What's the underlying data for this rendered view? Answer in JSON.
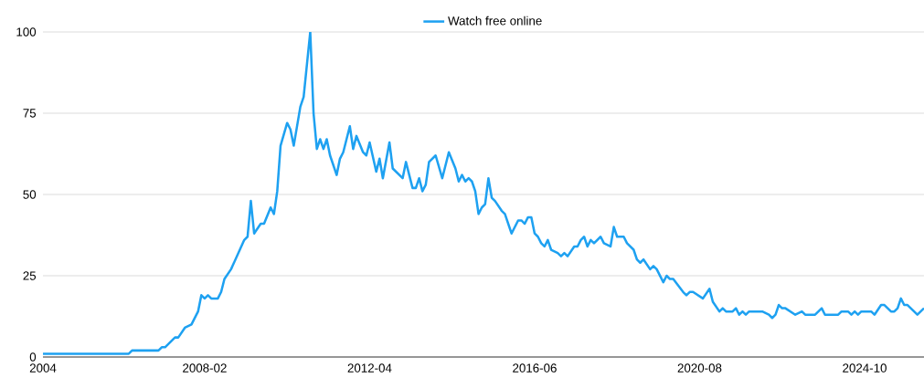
{
  "chart_data": {
    "type": "line",
    "x": [
      "2004-01",
      "2006-03",
      "2006-04",
      "2006-12",
      "2007-01",
      "2007-02",
      "2007-05",
      "2007-06",
      "2007-08",
      "2007-10",
      "2007-12",
      "2008-01",
      "2008-02",
      "2008-03",
      "2008-04",
      "2008-06",
      "2008-07",
      "2008-08",
      "2008-10",
      "2009-02",
      "2009-03",
      "2009-04",
      "2009-05",
      "2009-07",
      "2009-08",
      "2009-10",
      "2009-11",
      "2009-12",
      "2010-01",
      "2010-03",
      "2010-04",
      "2010-05",
      "2010-07",
      "2010-08",
      "2010-10",
      "2010-11",
      "2010-12",
      "2011-01",
      "2011-02",
      "2011-03",
      "2011-04",
      "2011-06",
      "2011-07",
      "2011-08",
      "2011-10",
      "2011-11",
      "2011-12",
      "2012-02",
      "2012-03",
      "2012-04",
      "2012-06",
      "2012-07",
      "2012-08",
      "2012-10",
      "2012-11",
      "2013-02",
      "2013-03",
      "2013-05",
      "2013-06",
      "2013-07",
      "2013-08",
      "2013-09",
      "2013-10",
      "2013-12",
      "2014-02",
      "2014-04",
      "2014-06",
      "2014-07",
      "2014-08",
      "2014-09",
      "2014-10",
      "2014-11",
      "2014-12",
      "2015-01",
      "2015-02",
      "2015-03",
      "2015-04",
      "2015-05",
      "2015-06",
      "2015-08",
      "2015-09",
      "2015-11",
      "2016-01",
      "2016-02",
      "2016-03",
      "2016-04",
      "2016-05",
      "2016-06",
      "2016-07",
      "2016-08",
      "2016-09",
      "2016-10",
      "2016-11",
      "2017-01",
      "2017-02",
      "2017-03",
      "2017-04",
      "2017-06",
      "2017-07",
      "2017-08",
      "2017-09",
      "2017-10",
      "2017-11",
      "2017-12",
      "2018-02",
      "2018-03",
      "2018-05",
      "2018-06",
      "2018-07",
      "2018-09",
      "2018-10",
      "2018-12",
      "2019-01",
      "2019-02",
      "2019-03",
      "2019-05",
      "2019-06",
      "2019-07",
      "2019-09",
      "2019-10",
      "2019-11",
      "2019-12",
      "2020-03",
      "2020-04",
      "2020-05",
      "2020-06",
      "2020-09",
      "2020-11",
      "2020-12",
      "2021-02",
      "2021-03",
      "2021-04",
      "2021-06",
      "2021-07",
      "2021-08",
      "2021-09",
      "2021-10",
      "2021-11",
      "2022-03",
      "2022-05",
      "2022-06",
      "2022-07",
      "2022-08",
      "2022-09",
      "2022-10",
      "2023-01",
      "2023-03",
      "2023-04",
      "2023-07",
      "2023-09",
      "2023-10",
      "2024-02",
      "2024-03",
      "2024-05",
      "2024-06",
      "2024-07",
      "2024-08",
      "2024-09",
      "2024-12",
      "2025-01",
      "2025-03",
      "2025-04",
      "2025-06",
      "2025-07",
      "2025-08",
      "2025-09",
      "2025-10",
      "2025-11",
      "2026-02",
      "2026-04"
    ],
    "series": [
      {
        "name": "Watch free online",
        "color": "#1ea1f1",
        "values": [
          1,
          1,
          2,
          2,
          3,
          3,
          6,
          6,
          9,
          10,
          14,
          19,
          18,
          19,
          18,
          18,
          20,
          24,
          27,
          36,
          37,
          48,
          38,
          41,
          41,
          46,
          44,
          51,
          65,
          72,
          70,
          65,
          77,
          80,
          100,
          75,
          64,
          67,
          64,
          67,
          62,
          56,
          61,
          63,
          71,
          64,
          68,
          63,
          62,
          66,
          57,
          61,
          55,
          66,
          58,
          55,
          60,
          52,
          52,
          55,
          51,
          53,
          60,
          62,
          55,
          63,
          58,
          54,
          56,
          54,
          55,
          54,
          51,
          44,
          46,
          47,
          55,
          49,
          48,
          45,
          44,
          38,
          42,
          42,
          41,
          43,
          43,
          38,
          37,
          35,
          34,
          36,
          33,
          32,
          31,
          32,
          31,
          34,
          34,
          36,
          37,
          34,
          36,
          35,
          37,
          35,
          34,
          40,
          37,
          37,
          35,
          33,
          30,
          29,
          30,
          27,
          28,
          27,
          23,
          25,
          24,
          24,
          20,
          19,
          20,
          20,
          18,
          21,
          17,
          14,
          15,
          14,
          14,
          15,
          13,
          14,
          13,
          14,
          14,
          13,
          12,
          13,
          16,
          15,
          15,
          13,
          14,
          13,
          13,
          15,
          13,
          13,
          14,
          14,
          13,
          14,
          13,
          14,
          14,
          13,
          16,
          16,
          14,
          14,
          15,
          18,
          16,
          16,
          13,
          15
        ]
      }
    ],
    "xlim": [
      "2004-01",
      "2026-04"
    ],
    "xticks": [
      "2004",
      "2008-02",
      "2012-04",
      "2016-06",
      "2020-08",
      "2024-10"
    ],
    "ylim": [
      0,
      100
    ],
    "yticks": [
      0,
      25,
      50,
      75,
      100
    ],
    "grid": "y",
    "legend": "top"
  }
}
